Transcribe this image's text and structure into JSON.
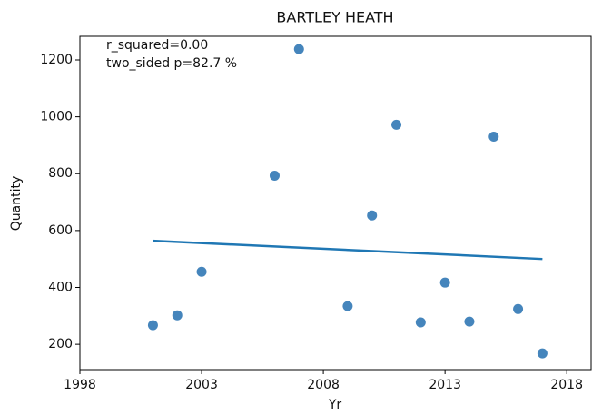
{
  "chart_data": {
    "type": "scatter",
    "title": "BARTLEY HEATH",
    "x_label": "Yr",
    "y_label": "Quantity",
    "annotations": [
      "r_squared=0.00",
      "two_sided p=82.7 %"
    ],
    "x": [
      2001,
      2002,
      2003,
      2006,
      2007,
      2009,
      2010,
      2011,
      2012,
      2013,
      2014,
      2015,
      2016,
      2017
    ],
    "values": [
      267,
      302,
      455,
      793,
      1238,
      334,
      653,
      972,
      277,
      417,
      280,
      930,
      324,
      168
    ],
    "color": "#3b7eb8",
    "fit": {
      "x": [
        2001,
        2017
      ],
      "values": [
        564,
        500
      ],
      "color": "#1f77b4"
    },
    "xlim": [
      1998,
      2019
    ],
    "xticks": [
      1998,
      2003,
      2008,
      2013,
      2018
    ],
    "ylim": [
      111,
      1283
    ],
    "yticks": [
      200,
      400,
      600,
      800,
      1000,
      1200
    ]
  }
}
